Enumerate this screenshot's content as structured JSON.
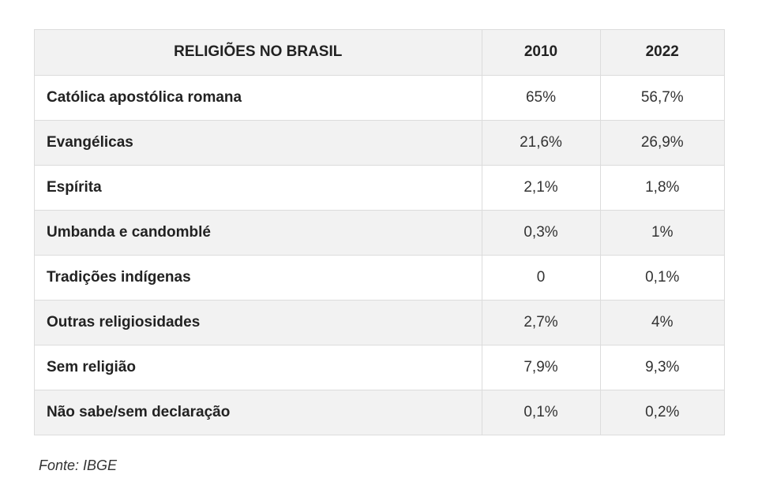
{
  "table": {
    "headers": [
      "RELIGIÕES NO BRASIL",
      "2010",
      "2022"
    ],
    "rows": [
      {
        "name": "Católica apostólica romana",
        "y2010": "65%",
        "y2022": "56,7%"
      },
      {
        "name": "Evangélicas",
        "y2010": "21,6%",
        "y2022": "26,9%"
      },
      {
        "name": "Espírita",
        "y2010": "2,1%",
        "y2022": "1,8%"
      },
      {
        "name": "Umbanda e candomblé",
        "y2010": "0,3%",
        "y2022": "1%"
      },
      {
        "name": "Tradições indígenas",
        "y2010": "0",
        "y2022": "0,1%"
      },
      {
        "name": "Outras religiosidades",
        "y2010": "2,7%",
        "y2022": "4%"
      },
      {
        "name": "Sem religião",
        "y2010": "7,9%",
        "y2022": "9,3%"
      },
      {
        "name": "Não sabe/sem declaração",
        "y2010": "0,1%",
        "y2022": "0,2%"
      }
    ]
  },
  "source": "Fonte: IBGE",
  "colors": {
    "header_bg": "#f2f2f2",
    "stripe_bg": "#f2f2f2",
    "border": "#dcdcdc",
    "text": "#222222"
  }
}
